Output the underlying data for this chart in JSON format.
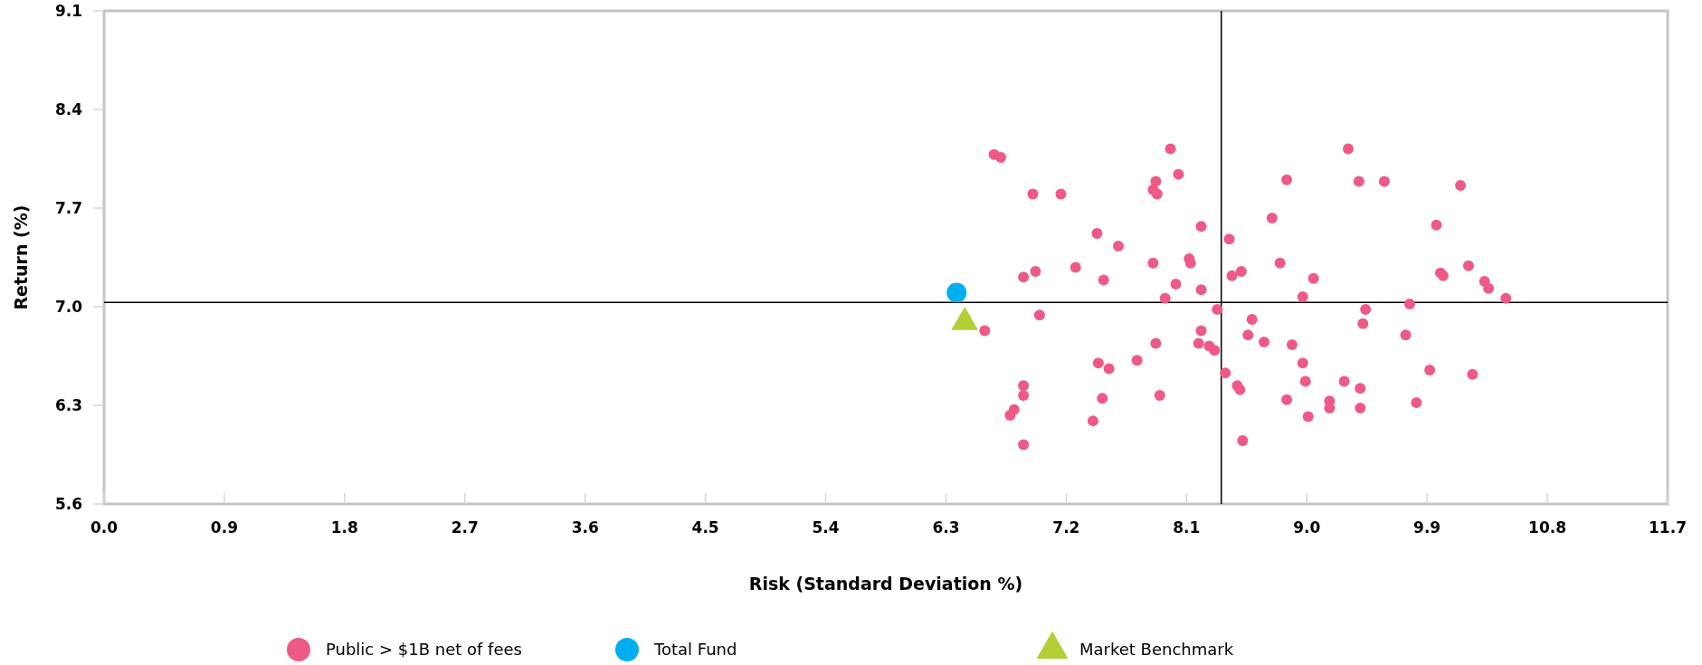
{
  "chart_data": {
    "type": "scatter",
    "xlabel": "Risk (Standard Deviation %)",
    "ylabel": "Return (%)",
    "xlim": [
      0,
      11.7
    ],
    "ylim": [
      5.6,
      9.1
    ],
    "xticks": [
      {
        "value": 0,
        "label": "0.0"
      },
      0.9,
      1.8,
      2.7,
      3.6,
      4.5,
      5.4,
      6.3,
      7.2,
      8.1,
      {
        "value": 9,
        "label": "9.0"
      },
      9.9,
      10.8,
      11.7
    ],
    "yticks": [
      5.6,
      6.3,
      {
        "value": 7,
        "label": "7.0"
      },
      7.7,
      8.4,
      9.1
    ],
    "grid": false,
    "legend": "bottom",
    "ref_lines": [
      {
        "axis": "x",
        "value": 8.36,
        "color": "#000000"
      },
      {
        "axis": "y",
        "value": 7.03,
        "color": "#000000"
      }
    ],
    "series": [
      {
        "name": "Public > $1B net of fees",
        "color": "#ee5a85",
        "marker": "circle",
        "x": [
          6.66,
          6.71,
          6.95,
          7.16,
          7.98,
          8.04,
          7.87,
          7.85,
          7.88,
          8.21,
          7.43,
          7.59,
          7.85,
          8.12,
          8.13,
          7.27,
          6.97,
          6.88,
          7.48,
          8.02,
          8.21,
          7.94,
          8.33,
          7.0,
          6.59,
          8.21,
          7.87,
          8.19,
          8.27,
          8.31,
          8.39,
          7.44,
          7.52,
          7.73,
          6.88,
          6.88,
          7.47,
          7.9,
          6.81,
          6.78,
          7.4,
          6.88,
          9.31,
          8.85,
          9.39,
          9.58,
          10.15,
          8.74,
          9.97,
          8.42,
          8.8,
          8.44,
          8.51,
          9.05,
          10.21,
          10.0,
          10.02,
          10.33,
          10.36,
          8.97,
          9.77,
          9.44,
          9.42,
          8.59,
          8.56,
          8.68,
          8.89,
          9.74,
          8.97,
          8.99,
          9.28,
          9.4,
          9.92,
          10.24,
          8.48,
          8.5,
          8.85,
          9.17,
          9.17,
          9.4,
          9.82,
          9.01,
          8.52,
          10.49
        ],
        "values": [
          8.08,
          8.06,
          7.8,
          7.8,
          8.12,
          7.94,
          7.89,
          7.83,
          7.8,
          7.57,
          7.52,
          7.43,
          7.31,
          7.34,
          7.31,
          7.28,
          7.25,
          7.21,
          7.19,
          7.16,
          7.12,
          7.06,
          6.98,
          6.94,
          6.83,
          6.83,
          6.74,
          6.74,
          6.72,
          6.69,
          6.53,
          6.6,
          6.56,
          6.62,
          6.44,
          6.37,
          6.35,
          6.37,
          6.27,
          6.23,
          6.19,
          6.02,
          8.12,
          7.9,
          7.89,
          7.89,
          7.86,
          7.63,
          7.58,
          7.48,
          7.31,
          7.22,
          7.25,
          7.2,
          7.29,
          7.24,
          7.22,
          7.18,
          7.13,
          7.07,
          7.02,
          6.98,
          6.88,
          6.91,
          6.8,
          6.75,
          6.73,
          6.8,
          6.6,
          6.47,
          6.47,
          6.42,
          6.55,
          6.52,
          6.44,
          6.41,
          6.34,
          6.33,
          6.28,
          6.28,
          6.32,
          6.22,
          6.05,
          7.06
        ]
      },
      {
        "name": "Total Fund",
        "color": "#00aeef",
        "marker": "circle",
        "x": [
          6.38
        ],
        "values": [
          7.1
        ]
      },
      {
        "name": "Market Benchmark",
        "color": "#b2cf35",
        "marker": "triangle",
        "x": [
          6.44
        ],
        "values": [
          6.89
        ]
      }
    ]
  }
}
